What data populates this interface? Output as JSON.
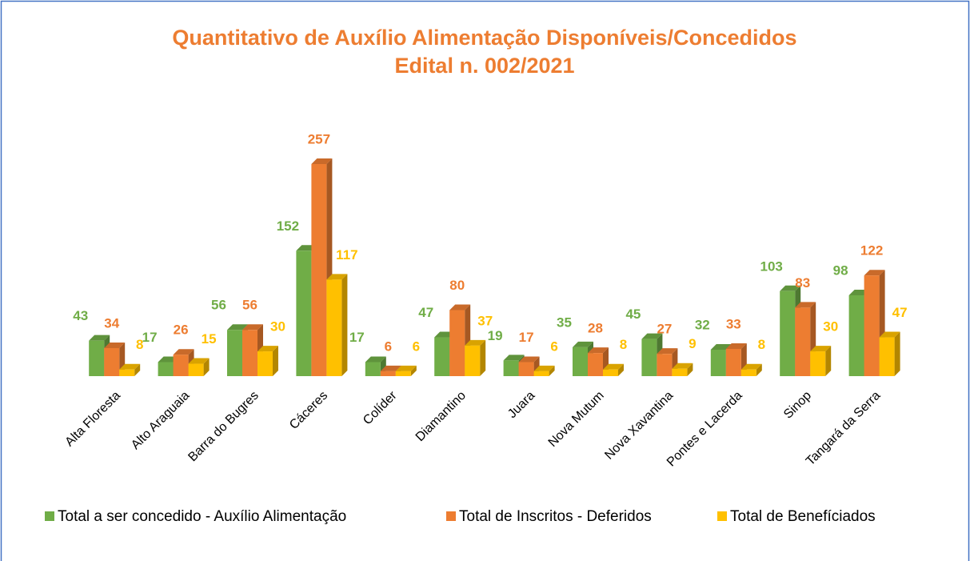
{
  "chart_data": {
    "type": "bar3d",
    "title": "Quantitativo de Auxílio Alimentação Disponíveis/Concedidos",
    "subtitle": "Edital n. 002/2021",
    "categories": [
      "Alta Floresta",
      "Alto Araguaia",
      "Barra do Bugres",
      "Cáceres",
      "Colíder",
      "Diamantino",
      "Juara",
      "Nova Mutum",
      "Nova Xavantina",
      "Pontes e Lacerda",
      "Sinop",
      "Tangará da Serra"
    ],
    "series": [
      {
        "name": "Total a ser concedido - Auxílio Alimentação",
        "color": "#70ad47",
        "values": [
          43,
          17,
          56,
          152,
          17,
          47,
          19,
          35,
          45,
          32,
          103,
          98
        ]
      },
      {
        "name": "Total de Inscritos - Deferidos",
        "color": "#ed7d31",
        "values": [
          34,
          26,
          56,
          257,
          6,
          80,
          17,
          28,
          27,
          33,
          83,
          122
        ]
      },
      {
        "name": "Total de Benefíciados",
        "color": "#ffc000",
        "values": [
          8,
          15,
          30,
          117,
          6,
          37,
          6,
          8,
          9,
          8,
          30,
          47
        ]
      }
    ],
    "legend": "bottom"
  }
}
